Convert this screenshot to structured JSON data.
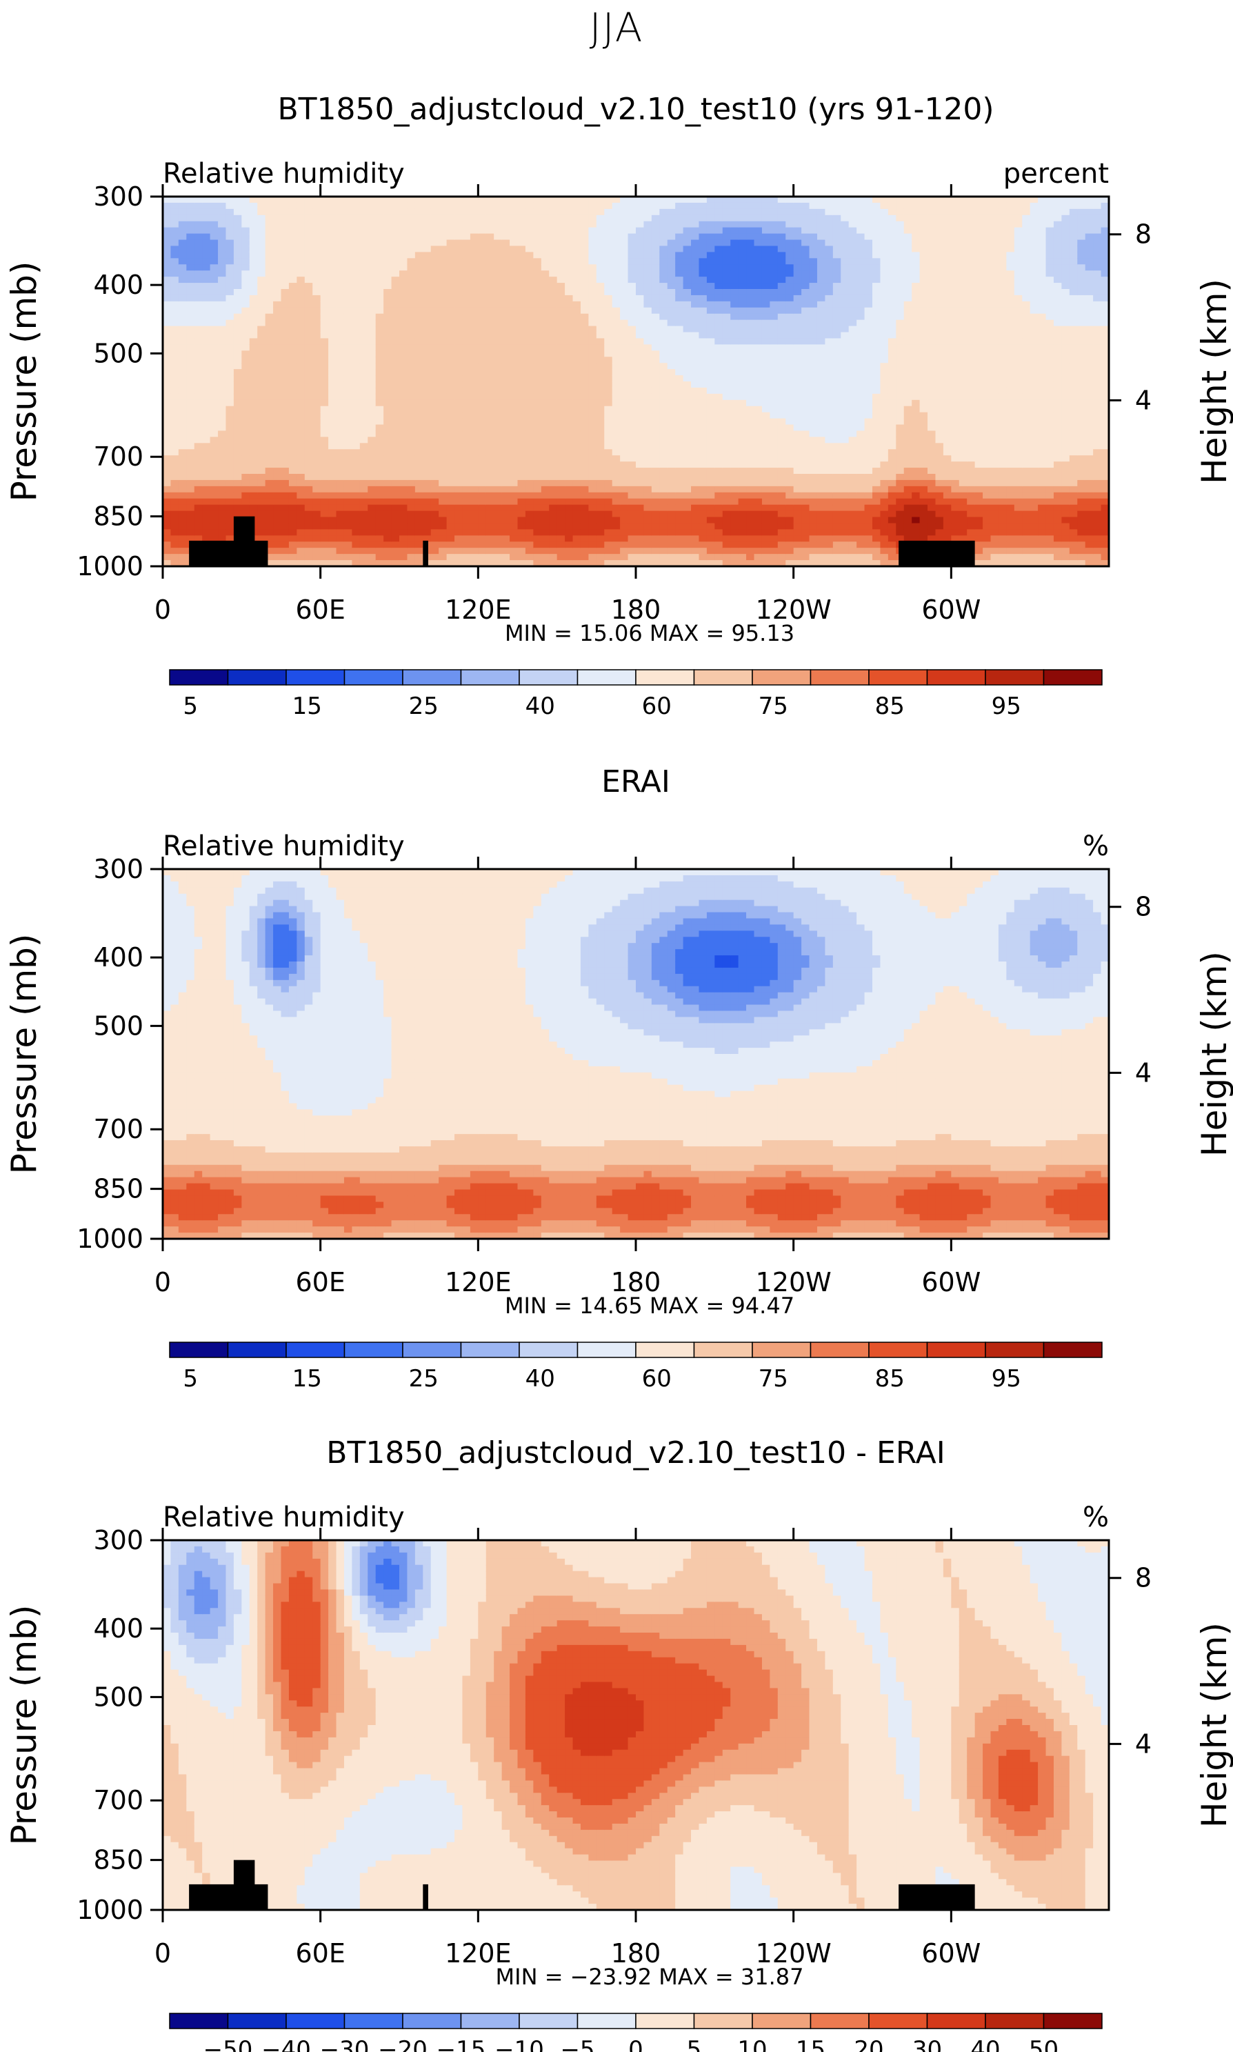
{
  "supertitle": "JJA",
  "chart_data": [
    {
      "type": "heatmap",
      "title": "BT1850_adjustcloud_v2.10_test10 (yrs 91-120)",
      "left_label": "Relative humidity",
      "right_label": "percent",
      "ylabel": "Pressure (mb)",
      "ylabel_right": "Height (km)",
      "x_ticks": [
        "0",
        "60E",
        "120E",
        "180",
        "120W",
        "60W"
      ],
      "x_tick_lon": [
        0,
        60,
        120,
        180,
        240,
        300
      ],
      "xlim": [
        0,
        360
      ],
      "y_ticks": [
        "300",
        "400",
        "500",
        "700",
        "850",
        "1000"
      ],
      "y_tick_values": [
        300,
        400,
        500,
        700,
        850,
        1000
      ],
      "ylim": [
        1000,
        300
      ],
      "height_ticks": [
        "8",
        "4"
      ],
      "height_tick_values": [
        8,
        4
      ],
      "stats": "MIN =   15.06   MAX =   95.13",
      "min": 15.06,
      "max": 95.13,
      "colorbar_labels": [
        "5",
        "15",
        "25",
        "40",
        "60",
        "75",
        "85",
        "95"
      ],
      "colorbar_levels": [
        5,
        10,
        15,
        20,
        25,
        30,
        40,
        50,
        60,
        70,
        75,
        80,
        85,
        90,
        95
      ],
      "colors": [
        "#08088a",
        "#0b2dc4",
        "#1f4fe8",
        "#3f72f0",
        "#6d93f0",
        "#9db6f2",
        "#c4d3f4",
        "#e4ecf8",
        "#fbe6d4",
        "#f6c9aa",
        "#f1a37c",
        "#ec7a50",
        "#e4532a",
        "#d4391a",
        "#b8260f",
        "#8c0a07"
      ]
    },
    {
      "type": "heatmap",
      "title": "ERAI",
      "left_label": "Relative humidity",
      "right_label": "%",
      "ylabel": "Pressure (mb)",
      "ylabel_right": "Height (km)",
      "x_ticks": [
        "0",
        "60E",
        "120E",
        "180",
        "120W",
        "60W"
      ],
      "x_tick_lon": [
        0,
        60,
        120,
        180,
        240,
        300
      ],
      "xlim": [
        0,
        360
      ],
      "y_ticks": [
        "300",
        "400",
        "500",
        "700",
        "850",
        "1000"
      ],
      "y_tick_values": [
        300,
        400,
        500,
        700,
        850,
        1000
      ],
      "ylim": [
        1000,
        300
      ],
      "height_ticks": [
        "8",
        "4"
      ],
      "height_tick_values": [
        8,
        4
      ],
      "stats": "MIN =   14.65   MAX =   94.47",
      "min": 14.65,
      "max": 94.47,
      "colorbar_labels": [
        "5",
        "15",
        "25",
        "40",
        "60",
        "75",
        "85",
        "95"
      ],
      "colorbar_levels": [
        5,
        10,
        15,
        20,
        25,
        30,
        40,
        50,
        60,
        70,
        75,
        80,
        85,
        90,
        95
      ],
      "colors": [
        "#08088a",
        "#0b2dc4",
        "#1f4fe8",
        "#3f72f0",
        "#6d93f0",
        "#9db6f2",
        "#c4d3f4",
        "#e4ecf8",
        "#fbe6d4",
        "#f6c9aa",
        "#f1a37c",
        "#ec7a50",
        "#e4532a",
        "#d4391a",
        "#b8260f",
        "#8c0a07"
      ]
    },
    {
      "type": "heatmap",
      "title": "BT1850_adjustcloud_v2.10_test10 - ERAI",
      "left_label": "Relative humidity",
      "right_label": "%",
      "ylabel": "Pressure (mb)",
      "ylabel_right": "Height (km)",
      "x_ticks": [
        "0",
        "60E",
        "120E",
        "180",
        "120W",
        "60W"
      ],
      "x_tick_lon": [
        0,
        60,
        120,
        180,
        240,
        300
      ],
      "xlim": [
        0,
        360
      ],
      "y_ticks": [
        "300",
        "400",
        "500",
        "700",
        "850",
        "1000"
      ],
      "y_tick_values": [
        300,
        400,
        500,
        700,
        850,
        1000
      ],
      "ylim": [
        1000,
        300
      ],
      "height_ticks": [
        "8",
        "4"
      ],
      "height_tick_values": [
        8,
        4
      ],
      "stats": "MIN = −23.92   MAX =   31.87",
      "min": -23.92,
      "max": 31.87,
      "colorbar_labels": [
        "−50",
        "−40",
        "−30",
        "−20",
        "−15",
        "−10",
        "−5",
        "0",
        "5",
        "10",
        "15",
        "20",
        "30",
        "40",
        "50"
      ],
      "colorbar_levels": [
        -50,
        -40,
        -30,
        -20,
        -15,
        -10,
        -5,
        0,
        5,
        10,
        15,
        20,
        30,
        40,
        50
      ],
      "colors": [
        "#08088a",
        "#0b2dc4",
        "#1f4fe8",
        "#3f72f0",
        "#6d93f0",
        "#9db6f2",
        "#c4d3f4",
        "#e4ecf8",
        "#fbe6d4",
        "#f6c9aa",
        "#f1a37c",
        "#ec7a50",
        "#e4532a",
        "#d4391a",
        "#b8260f",
        "#8c0a07"
      ]
    }
  ]
}
